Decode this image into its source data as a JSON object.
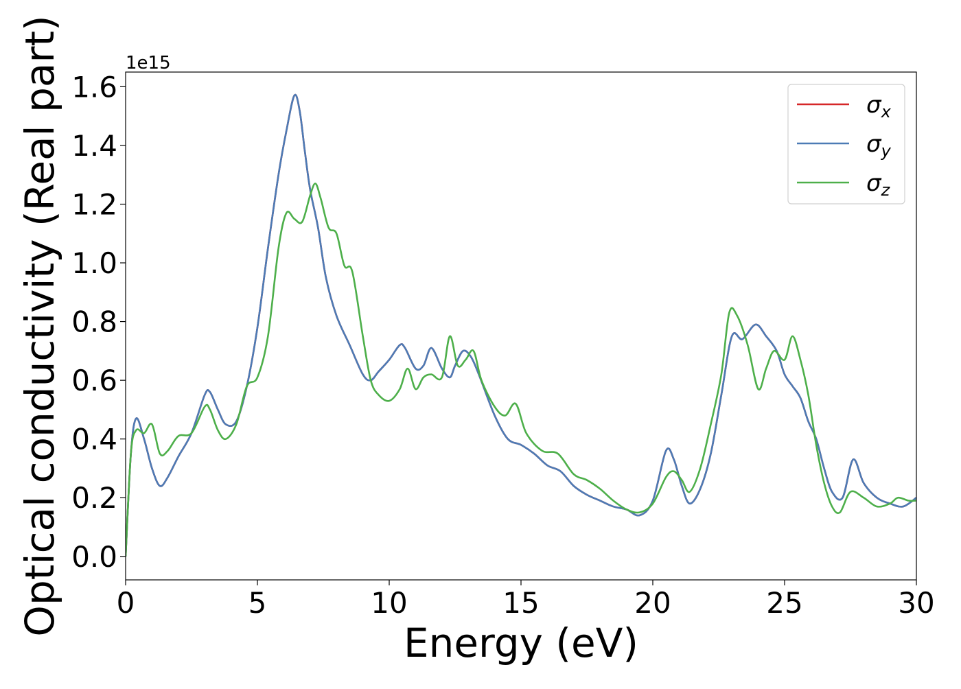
{
  "chart_data": {
    "type": "line",
    "title": "",
    "xlabel": "Energy (eV)",
    "ylabel": "Optical conductivity (Real part)",
    "y_offset_label": "1e15",
    "xlim": [
      0,
      30
    ],
    "ylim": [
      -0.08,
      1.65
    ],
    "x_ticks": [
      0,
      5,
      10,
      15,
      20,
      25,
      30
    ],
    "x_tick_labels": [
      "0",
      "5",
      "10",
      "15",
      "20",
      "25",
      "30"
    ],
    "y_ticks": [
      0.0,
      0.2,
      0.4,
      0.6,
      0.8,
      1.0,
      1.2,
      1.4,
      1.6
    ],
    "y_tick_labels": [
      "0.0",
      "0.2",
      "0.4",
      "0.6",
      "0.8",
      "1.0",
      "1.2",
      "1.4",
      "1.6"
    ],
    "grid": false,
    "legend_position": "top-right",
    "series": [
      {
        "name": "σx",
        "label_base": "σ",
        "label_sub": "x",
        "color": "#d62728",
        "x": [
          0,
          0.2,
          0.4,
          0.7,
          1.0,
          1.3,
          1.6,
          2.0,
          2.5,
          3.0,
          3.2,
          3.5,
          3.8,
          4.2,
          4.6,
          5.0,
          5.4,
          5.8,
          6.1,
          6.4,
          6.6,
          6.8,
          7.0,
          7.3,
          7.6,
          8.0,
          8.5,
          9.0,
          9.3,
          9.6,
          10.0,
          10.4,
          10.6,
          11.0,
          11.3,
          11.6,
          12.0,
          12.3,
          12.5,
          12.8,
          13.1,
          13.4,
          14.0,
          14.5,
          15.0,
          15.5,
          16.0,
          16.5,
          17.0,
          17.5,
          18.0,
          18.5,
          19.0,
          19.5,
          20.0,
          20.5,
          20.8,
          21.1,
          21.4,
          21.8,
          22.2,
          22.6,
          23.0,
          23.4,
          23.9,
          24.3,
          24.7,
          25.0,
          25.3,
          25.6,
          25.9,
          26.2,
          26.5,
          26.8,
          27.2,
          27.6,
          28.0,
          28.5,
          29.0,
          29.5,
          30.0
        ],
        "values": [
          0.0,
          0.35,
          0.47,
          0.4,
          0.3,
          0.24,
          0.27,
          0.34,
          0.42,
          0.55,
          0.56,
          0.5,
          0.45,
          0.46,
          0.58,
          0.78,
          1.05,
          1.3,
          1.45,
          1.57,
          1.52,
          1.38,
          1.25,
          1.12,
          0.95,
          0.82,
          0.72,
          0.62,
          0.6,
          0.63,
          0.67,
          0.72,
          0.71,
          0.64,
          0.65,
          0.71,
          0.64,
          0.61,
          0.65,
          0.7,
          0.68,
          0.62,
          0.48,
          0.4,
          0.38,
          0.35,
          0.31,
          0.29,
          0.24,
          0.21,
          0.19,
          0.17,
          0.16,
          0.14,
          0.19,
          0.36,
          0.33,
          0.24,
          0.18,
          0.23,
          0.35,
          0.55,
          0.75,
          0.74,
          0.79,
          0.75,
          0.7,
          0.62,
          0.58,
          0.54,
          0.46,
          0.4,
          0.3,
          0.22,
          0.2,
          0.33,
          0.25,
          0.2,
          0.18,
          0.17,
          0.2
        ]
      },
      {
        "name": "σy",
        "label_base": "σ",
        "label_sub": "y",
        "color": "#4c7bb5",
        "x": [
          0,
          0.2,
          0.4,
          0.7,
          1.0,
          1.3,
          1.6,
          2.0,
          2.5,
          3.0,
          3.2,
          3.5,
          3.8,
          4.2,
          4.6,
          5.0,
          5.4,
          5.8,
          6.1,
          6.4,
          6.6,
          6.8,
          7.0,
          7.3,
          7.6,
          8.0,
          8.5,
          9.0,
          9.3,
          9.6,
          10.0,
          10.4,
          10.6,
          11.0,
          11.3,
          11.6,
          12.0,
          12.3,
          12.5,
          12.8,
          13.1,
          13.4,
          14.0,
          14.5,
          15.0,
          15.5,
          16.0,
          16.5,
          17.0,
          17.5,
          18.0,
          18.5,
          19.0,
          19.5,
          20.0,
          20.5,
          20.8,
          21.1,
          21.4,
          21.8,
          22.2,
          22.6,
          23.0,
          23.4,
          23.9,
          24.3,
          24.7,
          25.0,
          25.3,
          25.6,
          25.9,
          26.2,
          26.5,
          26.8,
          27.2,
          27.6,
          28.0,
          28.5,
          29.0,
          29.5,
          30.0
        ],
        "values": [
          0.0,
          0.35,
          0.47,
          0.4,
          0.3,
          0.24,
          0.27,
          0.34,
          0.42,
          0.55,
          0.56,
          0.5,
          0.45,
          0.46,
          0.58,
          0.78,
          1.05,
          1.3,
          1.45,
          1.57,
          1.52,
          1.38,
          1.25,
          1.12,
          0.95,
          0.82,
          0.72,
          0.62,
          0.6,
          0.63,
          0.67,
          0.72,
          0.71,
          0.64,
          0.65,
          0.71,
          0.64,
          0.61,
          0.65,
          0.7,
          0.68,
          0.62,
          0.48,
          0.4,
          0.38,
          0.35,
          0.31,
          0.29,
          0.24,
          0.21,
          0.19,
          0.17,
          0.16,
          0.14,
          0.19,
          0.36,
          0.33,
          0.24,
          0.18,
          0.23,
          0.35,
          0.55,
          0.75,
          0.74,
          0.79,
          0.75,
          0.7,
          0.62,
          0.58,
          0.54,
          0.46,
          0.4,
          0.3,
          0.22,
          0.2,
          0.33,
          0.25,
          0.2,
          0.18,
          0.17,
          0.2
        ]
      },
      {
        "name": "σz",
        "label_base": "σ",
        "label_sub": "z",
        "color": "#4daf4a",
        "x": [
          0,
          0.2,
          0.4,
          0.7,
          1.0,
          1.3,
          1.6,
          2.0,
          2.5,
          3.0,
          3.2,
          3.5,
          3.8,
          4.2,
          4.6,
          5.0,
          5.4,
          5.8,
          6.1,
          6.4,
          6.7,
          7.0,
          7.2,
          7.4,
          7.7,
          8.0,
          8.3,
          8.6,
          9.0,
          9.3,
          9.6,
          10.0,
          10.4,
          10.7,
          11.0,
          11.3,
          11.6,
          12.0,
          12.3,
          12.6,
          12.9,
          13.2,
          13.5,
          14.0,
          14.4,
          14.8,
          15.2,
          15.8,
          16.4,
          17.0,
          17.5,
          18.0,
          18.5,
          19.0,
          19.5,
          20.0,
          20.5,
          20.8,
          21.1,
          21.4,
          21.8,
          22.2,
          22.6,
          22.9,
          23.2,
          23.6,
          24.0,
          24.3,
          24.6,
          25.0,
          25.3,
          25.6,
          25.9,
          26.2,
          26.5,
          26.8,
          27.1,
          27.5,
          28.0,
          28.5,
          29.0,
          29.3,
          29.7,
          30.0
        ],
        "values": [
          0.0,
          0.35,
          0.43,
          0.42,
          0.45,
          0.35,
          0.36,
          0.41,
          0.42,
          0.51,
          0.5,
          0.43,
          0.4,
          0.45,
          0.58,
          0.61,
          0.75,
          1.05,
          1.17,
          1.15,
          1.14,
          1.23,
          1.27,
          1.22,
          1.12,
          1.1,
          0.99,
          0.97,
          0.75,
          0.6,
          0.55,
          0.53,
          0.57,
          0.64,
          0.57,
          0.61,
          0.62,
          0.61,
          0.75,
          0.65,
          0.67,
          0.7,
          0.6,
          0.51,
          0.48,
          0.52,
          0.42,
          0.36,
          0.35,
          0.28,
          0.26,
          0.23,
          0.19,
          0.16,
          0.15,
          0.18,
          0.27,
          0.29,
          0.26,
          0.22,
          0.3,
          0.45,
          0.62,
          0.83,
          0.82,
          0.72,
          0.57,
          0.64,
          0.7,
          0.67,
          0.75,
          0.67,
          0.55,
          0.38,
          0.25,
          0.17,
          0.15,
          0.22,
          0.2,
          0.17,
          0.18,
          0.2,
          0.19,
          0.19
        ]
      }
    ]
  }
}
